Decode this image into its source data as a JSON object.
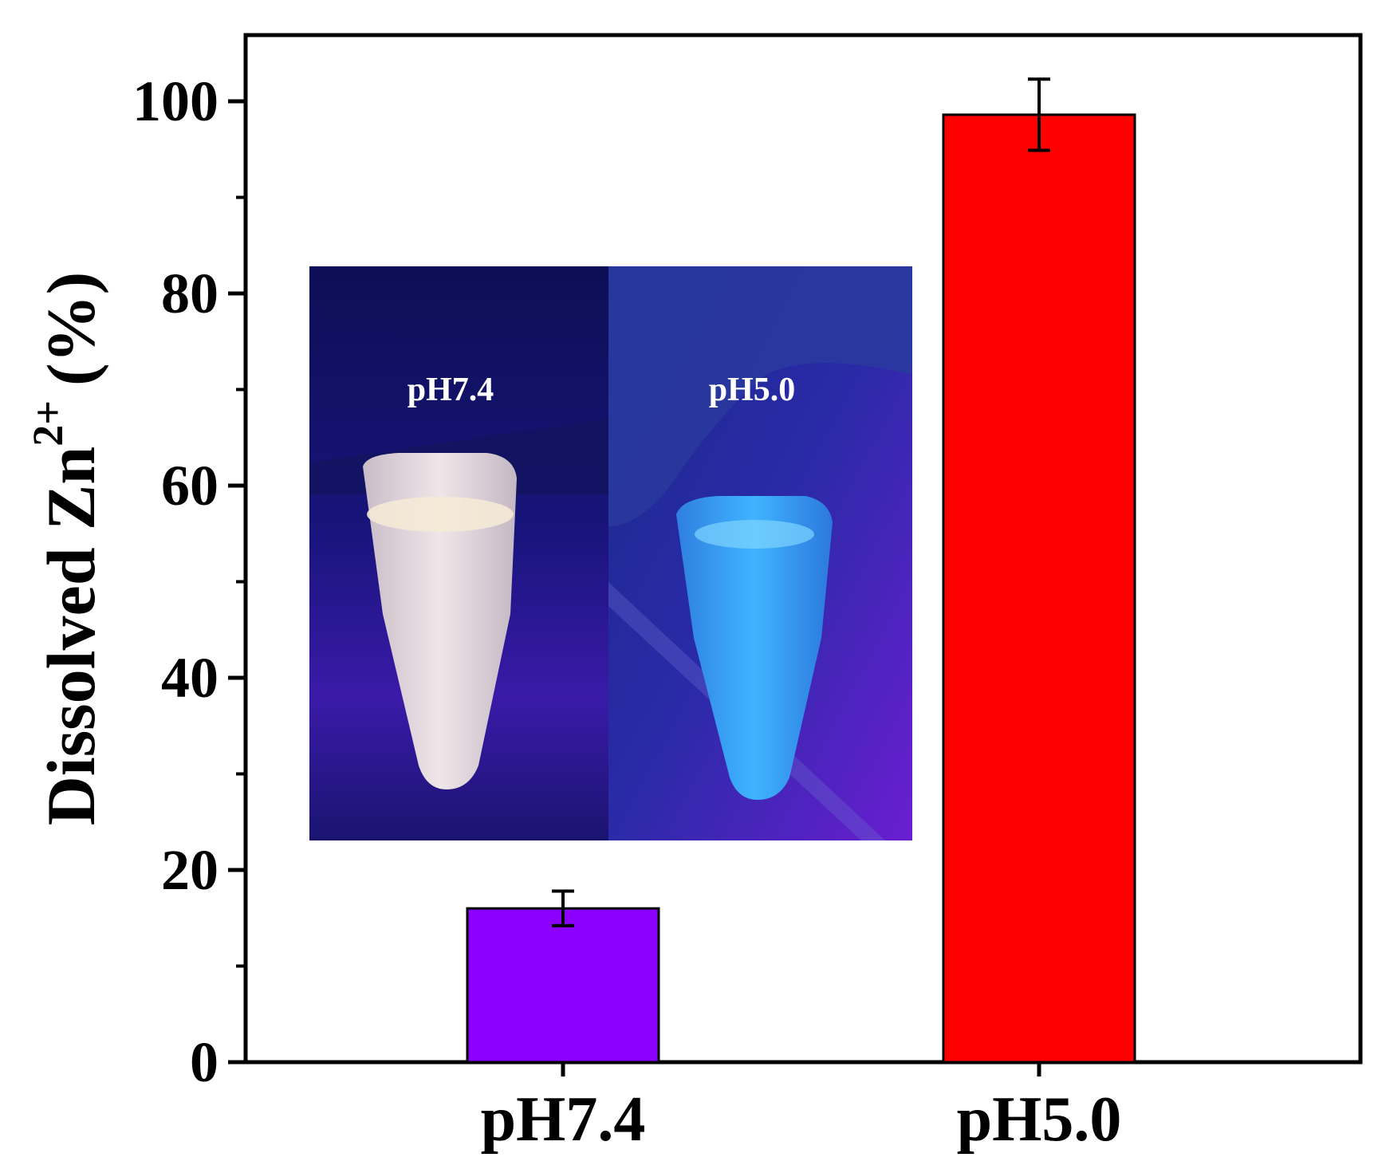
{
  "chart_data": {
    "type": "bar",
    "categories": [
      "pH7.4",
      "pH5.0"
    ],
    "values": [
      16,
      98.6
    ],
    "errors": [
      1.8,
      3.7
    ],
    "colors": [
      "#8b00ff",
      "#ff0000"
    ],
    "title": "",
    "xlabel": "",
    "ylabel": "Dissolved Zn",
    "ylabel_superscript": "2+",
    "ylabel_units": "(%)",
    "ylim": [
      0,
      105
    ],
    "yticks": [
      0,
      20,
      40,
      60,
      80,
      100
    ],
    "yminor_ticks": [
      10,
      30,
      50,
      70,
      90
    ],
    "grid": false,
    "inset": {
      "description": "photo of two tubes under UV light",
      "labels": [
        "pH7.4",
        "pH5.0"
      ]
    }
  }
}
